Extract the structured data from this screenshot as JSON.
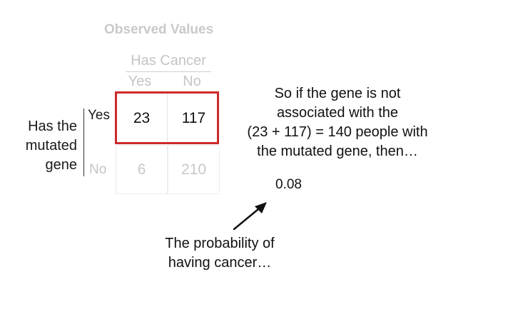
{
  "table": {
    "title": "Observed Values",
    "column_header": "Has Cancer",
    "column_yes": "Yes",
    "column_no": "No",
    "row_header_line1": "Has the",
    "row_header_line2": "mutated",
    "row_header_line3": "gene",
    "row_yes": "Yes",
    "row_no": "No",
    "cells": {
      "yes_yes": "23",
      "yes_no": "117",
      "no_yes": "6",
      "no_no": "210"
    }
  },
  "explanation": {
    "line1": "So if the gene is not",
    "line2": "associated with the",
    "line3": "(23 + 117) = 140 people with",
    "line4": "the mutated gene, then…"
  },
  "probability_value": "0.08",
  "caption": {
    "line1": "The probability of",
    "line2": "having cancer…"
  },
  "colors": {
    "highlight": "#cc2a2a",
    "faded_text": "#c4c4c4"
  }
}
